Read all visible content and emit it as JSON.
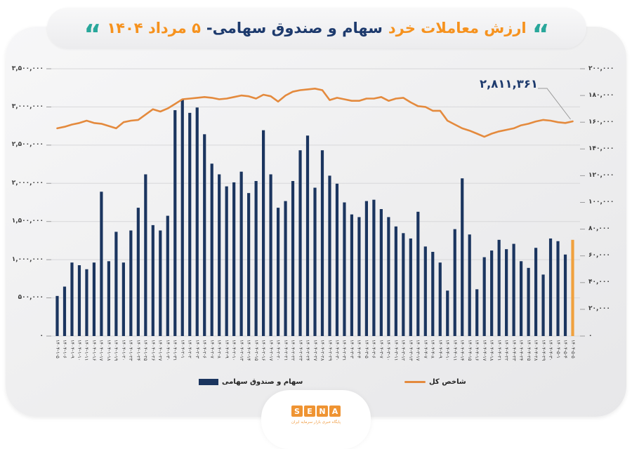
{
  "title": {
    "quote_right": "“",
    "quote_left": "“",
    "part1": "ارزش معاملات خرد",
    "part2": "سهام و صندوق سهامی-",
    "part3": "۵ مرداد ۱۴۰۴"
  },
  "colors": {
    "navy_bar": "#1b355f",
    "orange_bar_highlight": "#f0a13e",
    "line_orange": "#e48a3d",
    "title_orange": "#f6921e",
    "title_navy": "#1d3a6d",
    "teal_quote": "#29a79b",
    "grid": "#d8d8da",
    "tick": "#9c9c9e",
    "axis_text": "#3b3b3b",
    "leader": "#9a9a9a"
  },
  "annotation": {
    "text": "۲,۸۱۱,۳۶۱",
    "value": 2811361
  },
  "legend": {
    "bar_label": "سهام و صندوق سهامی",
    "line_label": "شاخص کل"
  },
  "logo": {
    "letters": [
      "S",
      "E",
      "N",
      "A"
    ],
    "caption": "پایگاه خبری بازار سرمایه ایران"
  },
  "chart_data": {
    "type": "bar",
    "combo": "bar+line",
    "grid": true,
    "highlight_last_bar": true,
    "left_axis": {
      "min": 0,
      "max": 3500000,
      "step": 500000,
      "tick_labels": [
        "۳,۵۰۰,۰۰۰",
        "۳,۰۰۰,۰۰۰",
        "۲,۵۰۰,۰۰۰",
        "۲,۰۰۰,۰۰۰",
        "۱,۵۰۰,۰۰۰",
        "۱,۰۰۰,۰۰۰",
        "۵۰۰,۰۰۰",
        "۰"
      ]
    },
    "right_axis": {
      "min": 0,
      "max": 200000,
      "step": 20000,
      "tick_labels": [
        "۲۰۰,۰۰۰",
        "۱۸۰,۰۰۰",
        "۱۶۰,۰۰۰",
        "۱۴۰,۰۰۰",
        "۱۲۰,۰۰۰",
        "۱۰۰,۰۰۰",
        "۸۰,۰۰۰",
        "۶۰,۰۰۰",
        "۴۰,۰۰۰",
        "۲۰,۰۰۰",
        "۰"
      ]
    },
    "categories": [
      "۱۴۰۴-۱-۵",
      "۱۴۰۴-۱-۶",
      "۱۴۰۴-۱-۹",
      "۱۴۰۴-۱-۱۰",
      "۱۴۰۴-۱-۱۱",
      "۱۴۰۴-۱-۱۶",
      "۱۴۰۴-۱-۱۷",
      "۱۴۰۴-۱-۱۸",
      "۱۴۰۴-۱-۱۹",
      "۱۴۰۴-۱-۲۰",
      "۱۴۰۴-۱-۲۳",
      "۱۴۰۴-۱-۲۴",
      "۱۴۰۴-۱-۲۵",
      "۱۴۰۴-۱-۲۶",
      "۱۴۰۴-۱-۲۷",
      "۱۴۰۴-۱-۳۰",
      "۱۴۰۴-۱-۳۱",
      "۱۴۰۴-۲-۱",
      "۱۴۰۴-۲-۲",
      "۱۴۰۴-۲-۳",
      "۱۴۰۴-۲-۶",
      "۱۴۰۴-۲-۷",
      "۱۴۰۴-۲-۸",
      "۱۴۰۴-۲-۹",
      "۱۴۰۴-۲-۱۰",
      "۱۴۰۴-۲-۱۳",
      "۱۴۰۴-۲-۱۴",
      "۱۴۰۴-۲-۱۵",
      "۱۴۰۴-۲-۱۶",
      "۱۴۰۴-۲-۱۷",
      "۱۴۰۴-۲-۲۰",
      "۱۴۰۴-۲-۲۱",
      "۱۴۰۴-۲-۲۲",
      "۱۴۰۴-۲-۲۳",
      "۱۴۰۴-۲-۲۴",
      "۱۴۰۴-۲-۲۷",
      "۱۴۰۴-۲-۲۸",
      "۱۴۰۴-۲-۲۹",
      "۱۴۰۴-۲-۳۰",
      "۱۴۰۴-۲-۳۱",
      "۱۴۰۴-۳-۳",
      "۱۴۰۴-۳-۴",
      "۱۴۰۴-۳-۵",
      "۱۴۰۴-۳-۶",
      "۱۴۰۴-۳-۷",
      "۱۴۰۴-۳-۱۰",
      "۱۴۰۴-۳-۱۱",
      "۱۴۰۴-۳-۱۲",
      "۱۴۰۴-۳-۱۳",
      "۱۴۰۴-۳-۱۷",
      "۱۴۰۴-۴-۷",
      "۱۴۰۴-۴-۸",
      "۱۴۰۴-۴-۹",
      "۱۴۰۴-۴-۱۰",
      "۱۴۰۴-۴-۱۱",
      "۱۴۰۴-۴-۱۴",
      "۱۴۰۴-۴-۱۵",
      "۱۴۰۴-۴-۱۶",
      "۱۴۰۴-۴-۱۷",
      "۱۴۰۴-۴-۱۸",
      "۱۴۰۴-۴-۲۱",
      "۱۴۰۴-۴-۲۲",
      "۱۴۰۴-۴-۲۳",
      "۱۴۰۴-۴-۲۴",
      "۱۴۰۴-۴-۲۵",
      "۱۴۰۴-۴-۲۸",
      "۱۴۰۴-۴-۲۹",
      "۱۴۰۴-۴-۳۰",
      "۱۴۰۴-۵-۱",
      "۱۴۰۴-۵-۴",
      "۱۴۰۴-۵-۵"
    ],
    "series": [
      {
        "name": "سهام و صندوق سهامی",
        "type": "bar",
        "axis": "right",
        "values": [
          30000,
          37000,
          55000,
          53000,
          50000,
          55000,
          108000,
          56000,
          78000,
          55000,
          79000,
          96000,
          121000,
          83000,
          79000,
          90000,
          169000,
          177000,
          167000,
          171000,
          151000,
          129000,
          121000,
          112000,
          115000,
          123000,
          107000,
          116000,
          154000,
          121000,
          96000,
          101000,
          116000,
          139000,
          150000,
          111000,
          139000,
          120000,
          114000,
          100000,
          91000,
          89000,
          101000,
          102000,
          95000,
          89000,
          82000,
          77000,
          73000,
          93000,
          67000,
          63000,
          55000,
          34000,
          80000,
          118000,
          76000,
          35000,
          59000,
          64000,
          72000,
          65000,
          69000,
          56000,
          51000,
          66000,
          46000,
          73000,
          71000,
          61000,
          72000
        ]
      },
      {
        "name": "شاخص کل",
        "type": "line",
        "axis": "left",
        "values": [
          2720000,
          2740000,
          2770000,
          2790000,
          2820000,
          2790000,
          2780000,
          2750000,
          2720000,
          2800000,
          2820000,
          2830000,
          2900000,
          2970000,
          2940000,
          2980000,
          3040000,
          3100000,
          3110000,
          3120000,
          3130000,
          3120000,
          3100000,
          3110000,
          3130000,
          3150000,
          3140000,
          3110000,
          3160000,
          3140000,
          3070000,
          3150000,
          3200000,
          3220000,
          3230000,
          3240000,
          3220000,
          3090000,
          3120000,
          3100000,
          3080000,
          3080000,
          3110000,
          3110000,
          3130000,
          3080000,
          3110000,
          3120000,
          3060000,
          3010000,
          3000000,
          2950000,
          2950000,
          2820000,
          2770000,
          2720000,
          2690000,
          2650000,
          2610000,
          2650000,
          2680000,
          2700000,
          2720000,
          2760000,
          2780000,
          2810000,
          2830000,
          2820000,
          2800000,
          2790000,
          2811361
        ]
      }
    ]
  }
}
